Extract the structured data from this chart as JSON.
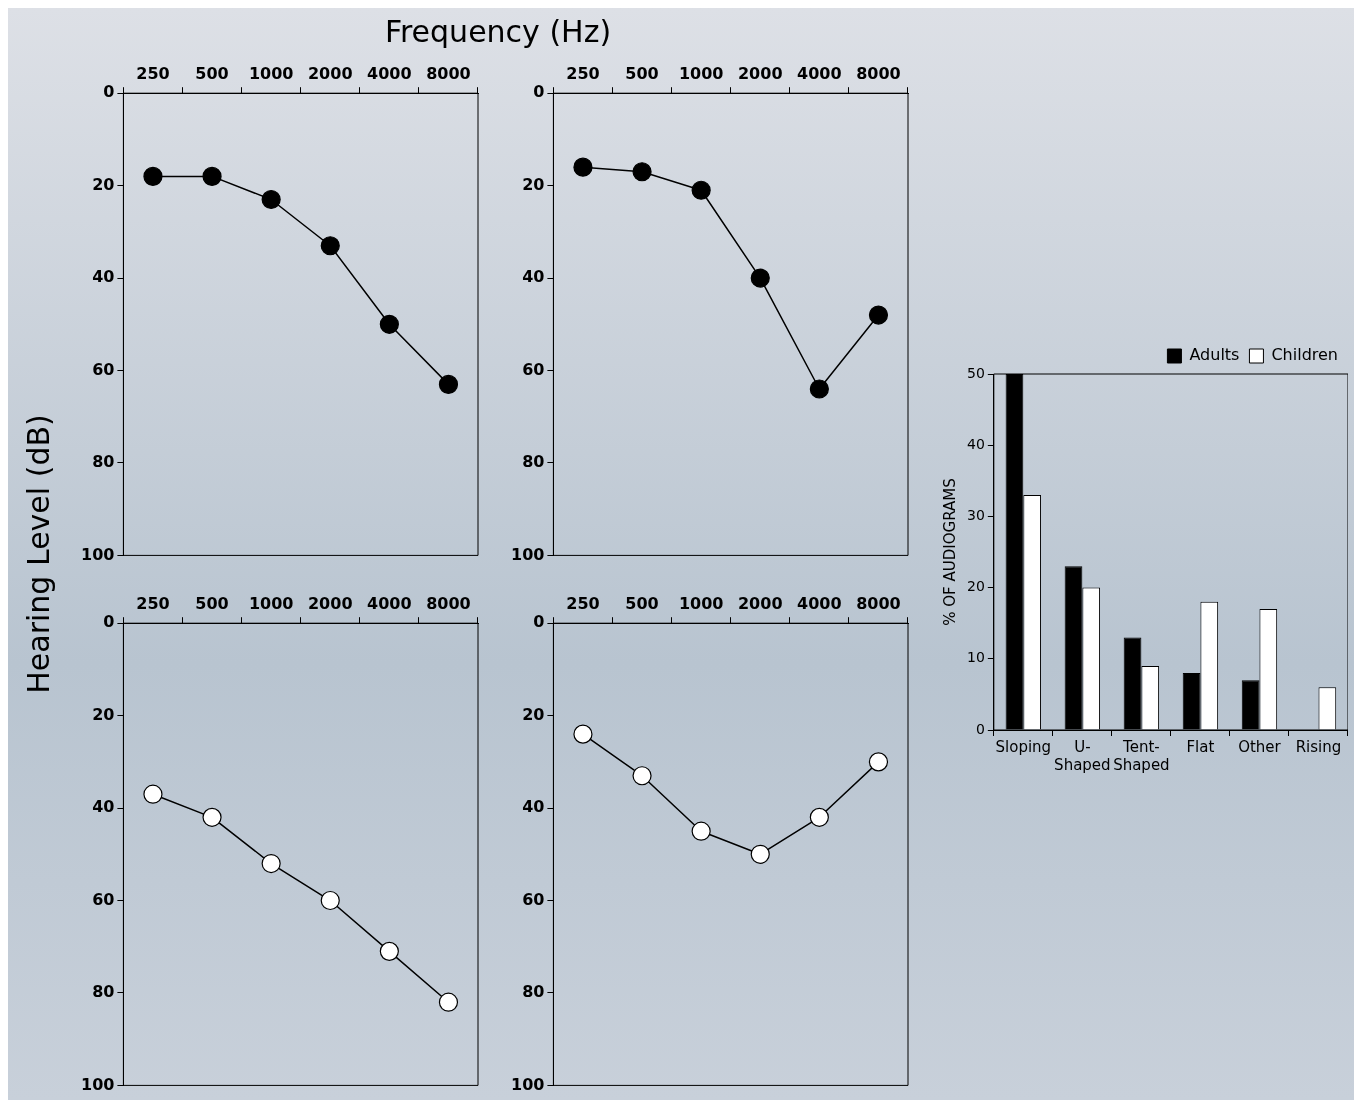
{
  "chart_data": [
    {
      "type": "line",
      "xlabel": "Frequency (Hz)",
      "ylabel": "Hearing Level (dB)",
      "categories": [
        "250",
        "500",
        "1000",
        "2000",
        "4000",
        "8000"
      ],
      "series": [
        {
          "color": "#000000",
          "values": [
            18,
            18,
            23,
            33,
            50,
            63
          ]
        }
      ],
      "ylim": [
        100,
        0
      ],
      "yticks": [
        0,
        20,
        40,
        60,
        80,
        100
      ],
      "grid": false,
      "marker": "circle",
      "line_style": "solid"
    },
    {
      "type": "line",
      "categories": [
        "250",
        "500",
        "1000",
        "2000",
        "4000",
        "8000"
      ],
      "series": [
        {
          "color": "#000000",
          "values": [
            16,
            17,
            21,
            40,
            64,
            48
          ]
        }
      ],
      "ylim": [
        100,
        0
      ],
      "yticks": [
        0,
        20,
        40,
        60,
        80,
        100
      ],
      "grid": false,
      "marker": "circle",
      "line_style": "solid"
    },
    {
      "type": "line",
      "categories": [
        "250",
        "500",
        "1000",
        "2000",
        "4000",
        "8000"
      ],
      "series": [
        {
          "color": "#ffffff",
          "values": [
            37,
            42,
            52,
            60,
            71,
            82
          ]
        }
      ],
      "ylim": [
        100,
        0
      ],
      "yticks": [
        0,
        20,
        40,
        60,
        80,
        100
      ],
      "grid": false,
      "marker": "circle",
      "line_style": "solid"
    },
    {
      "type": "line",
      "categories": [
        "250",
        "500",
        "1000",
        "2000",
        "4000",
        "8000"
      ],
      "series": [
        {
          "color": "#ffffff",
          "values": [
            24,
            33,
            45,
            50,
            42,
            30
          ]
        }
      ],
      "ylim": [
        100,
        0
      ],
      "yticks": [
        0,
        20,
        40,
        60,
        80,
        100
      ],
      "grid": false,
      "marker": "circle",
      "line_style": "solid"
    },
    {
      "type": "bar",
      "ylabel": "% OF AUDIOGRAMS",
      "categories": [
        "Sloping",
        "U-Shaped",
        "Tent-Shaped",
        "Flat",
        "Other",
        "Rising"
      ],
      "series": [
        {
          "name": "Adults",
          "color": "#000000",
          "values": [
            50,
            23,
            13,
            8,
            7,
            0
          ]
        },
        {
          "name": "Children",
          "color": "#ffffff",
          "values": [
            33,
            20,
            9,
            18,
            17,
            6
          ]
        }
      ],
      "ylim": [
        0,
        50
      ],
      "yticks": [
        0,
        10,
        20,
        30,
        40,
        50
      ],
      "grid": false,
      "legend": "top right"
    }
  ]
}
